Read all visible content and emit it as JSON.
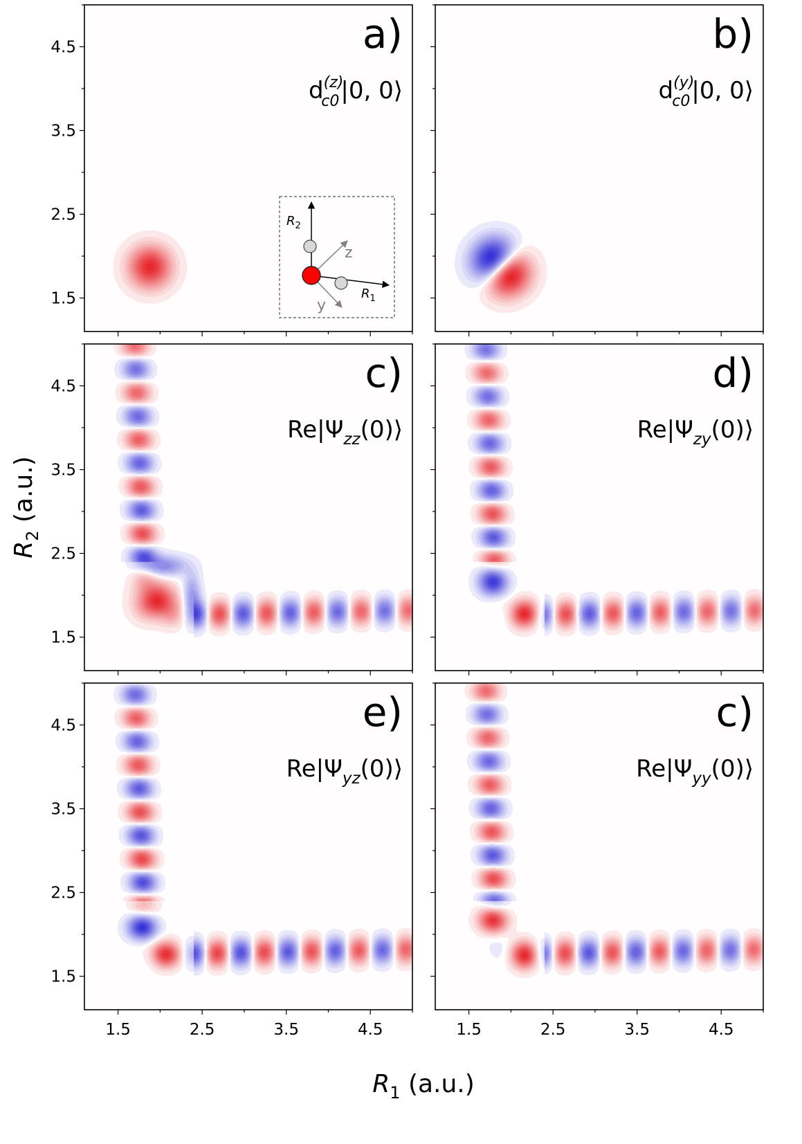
{
  "figure": {
    "xlabel": {
      "sym": "R",
      "sub": "1",
      "unit": " (a.u.)"
    },
    "ylabel": {
      "sym": "R",
      "sub": "2",
      "unit": " (a.u.)"
    }
  },
  "chart_data": {
    "type": "contour",
    "xlim": [
      1.1,
      5.0
    ],
    "ylim": [
      1.1,
      5.0
    ],
    "xticks": [
      1.5,
      2.5,
      3.5,
      4.5
    ],
    "yticks": [
      1.5,
      2.5,
      3.5,
      4.5
    ],
    "xtick_labels": [
      "1.5",
      "2.5",
      "3.5",
      "4.5"
    ],
    "ytick_labels": [
      "1.5",
      "2.5",
      "3.5",
      "4.5"
    ],
    "colormap": {
      "positive": "#e8262a",
      "negative": "#3a33d6",
      "zero": "#ffffff"
    },
    "grid": false,
    "panels": [
      {
        "letter": "a)",
        "label": {
          "pre": "d",
          "sup": "(z)",
          "sub": "c0",
          "post": "|0, 0⟩"
        },
        "kind": "gaussian",
        "center": [
          1.88,
          1.87
        ],
        "parity": 1,
        "inset": {
          "labels": [
            "R2",
            "z",
            "y",
            "R1"
          ]
        }
      },
      {
        "letter": "b)",
        "label": {
          "pre": "d",
          "sup": "(y)",
          "sub": "c0",
          "post": "|0, 0⟩"
        },
        "kind": "dipole",
        "center": [
          1.88,
          1.87
        ]
      },
      {
        "letter": "c)",
        "label": {
          "pre": "Re|Ψ",
          "sub": "zz",
          "post": "(0)⟩"
        },
        "kind": "channels",
        "mode": "zz",
        "corner_sign": 1
      },
      {
        "letter": "d)",
        "label": {
          "pre": "Re|Ψ",
          "sub": "zy",
          "post": "(0)⟩"
        },
        "kind": "channels",
        "mode": "zy"
      },
      {
        "letter": "e)",
        "label": {
          "pre": "Re|Ψ",
          "sub": "yz",
          "post": "(0)⟩"
        },
        "kind": "channels",
        "mode": "yz"
      },
      {
        "letter": "c)",
        "label": {
          "pre": "Re|Ψ",
          "sub": "yy",
          "post": "(0)⟩"
        },
        "kind": "channels",
        "mode": "yy"
      }
    ]
  }
}
